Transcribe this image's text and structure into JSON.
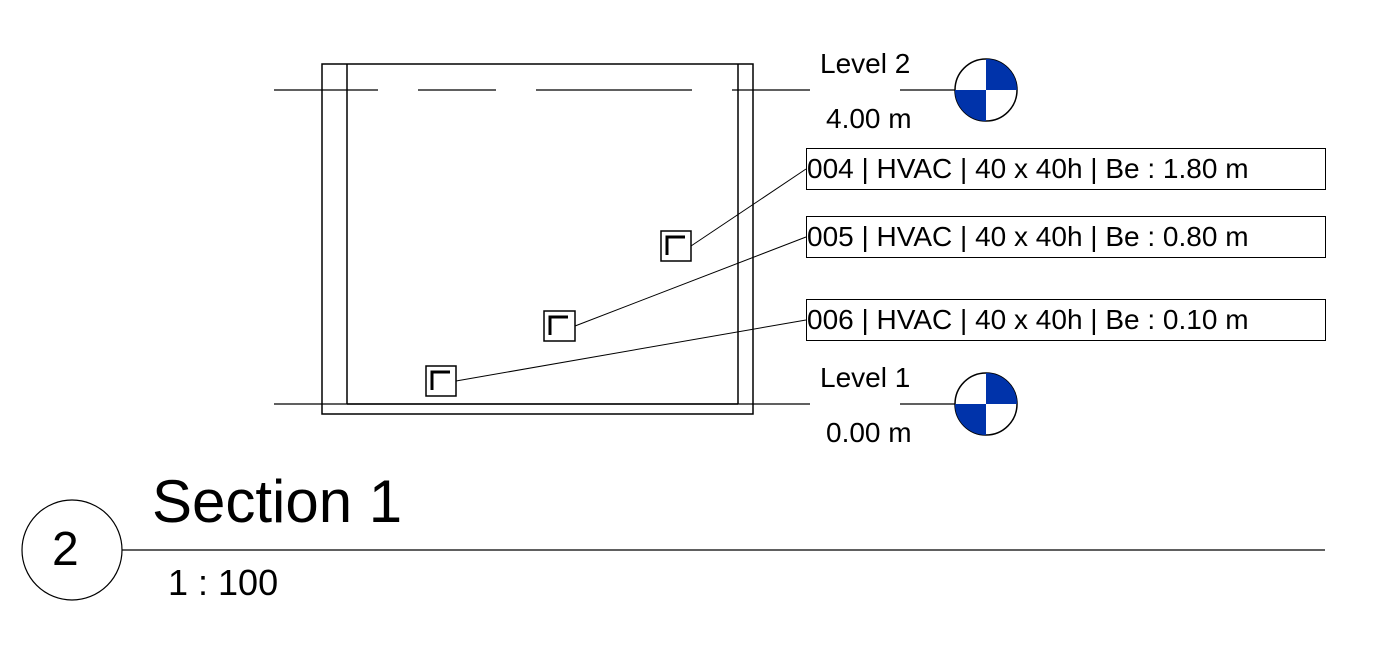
{
  "levels": [
    {
      "name": "Level 2",
      "elevation": "4.00 m"
    },
    {
      "name": "Level 1",
      "elevation": "0.00 m"
    }
  ],
  "tags": [
    "004 | HVAC | 40 x 40h | Be : 1.80 m",
    "005 | HVAC | 40 x 40h | Be : 0.80 m",
    "006 | HVAC | 40 x 40h | Be : 0.10 m"
  ],
  "view": {
    "number": "2",
    "title": "Section 1",
    "scale": "1 : 100"
  },
  "colors": {
    "level_head_fill": "#0033aa",
    "line": "#000000"
  }
}
